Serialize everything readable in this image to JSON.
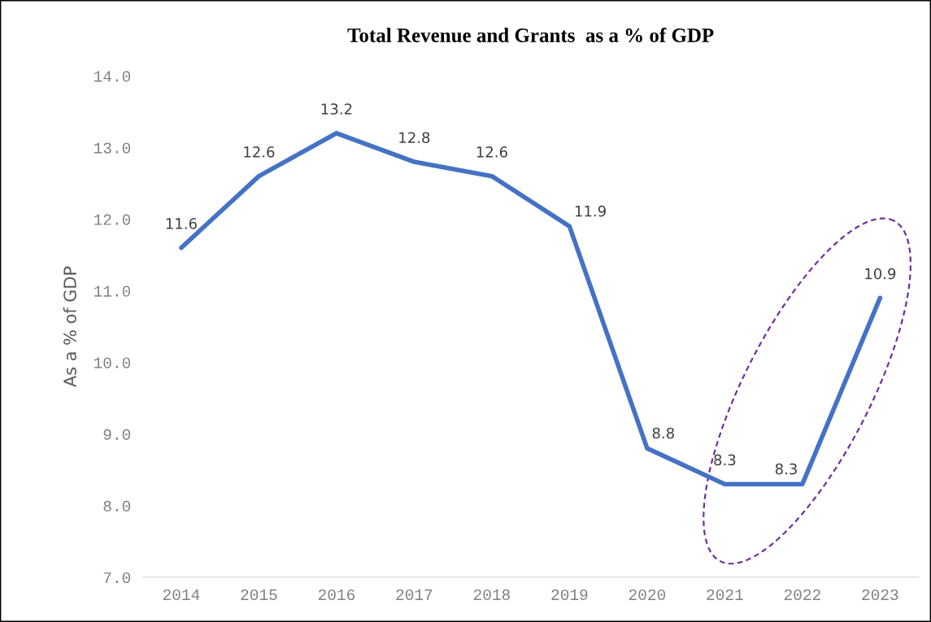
{
  "chart_data": {
    "type": "line",
    "title": "Total Revenue and Grants  as a % of GDP",
    "ylabel": "As a % of GDP",
    "categories": [
      "2014",
      "2015",
      "2016",
      "2017",
      "2018",
      "2019",
      "2020",
      "2021",
      "2022",
      "2023"
    ],
    "series": [
      {
        "color": "#4472c4",
        "values": [
          11.6,
          12.6,
          13.2,
          12.8,
          12.6,
          11.9,
          8.8,
          8.3,
          8.3,
          10.9
        ]
      }
    ],
    "ylim": [
      7.0,
      14.0
    ],
    "yticks": [
      {
        "value": 7,
        "label": "7.0"
      },
      {
        "value": 8,
        "label": "8.0"
      },
      {
        "value": 9,
        "label": "9.0"
      },
      {
        "value": 10,
        "label": "10.0"
      },
      {
        "value": 11,
        "label": "11.0"
      },
      {
        "value": 12,
        "label": "12.0"
      },
      {
        "value": 13,
        "label": "13.0"
      },
      {
        "value": 14,
        "label": "14.0"
      }
    ],
    "data_labels": true,
    "grid": false,
    "legend": false,
    "marker": "none",
    "line_style": "solid"
  }
}
